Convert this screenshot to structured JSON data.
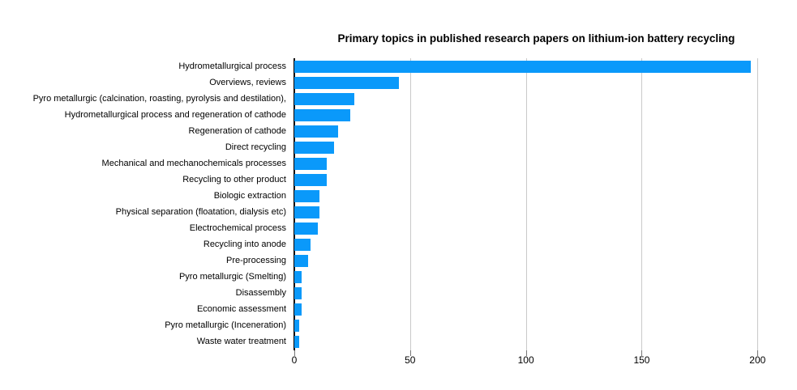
{
  "chart_data": {
    "type": "bar",
    "orientation": "horizontal",
    "title": "Primary topics in published research papers on lithium-ion battery recycling",
    "categories": [
      "Hydrometallurgical process",
      "Overviews, reviews",
      "Pyro metallurgic (calcination, roasting, pyrolysis and destilation),",
      "Hydrometallurgical process and regeneration of cathode",
      "Regeneration of cathode",
      "Direct recycling",
      "Mechanical and mechanochemicals processes",
      "Recycling to other product",
      "Biologic extraction",
      "Physical separation (floatation, dialysis etc)",
      "Electrochemical process",
      "Recycling into anode",
      "Pre-processing",
      "Pyro metallurgic (Smelting)",
      "Disassembly",
      "Economic assessment",
      "Pyro metallurgic (Inceneration)",
      "Waste water treatment"
    ],
    "values": [
      197,
      45,
      26,
      24,
      19,
      17,
      14,
      14,
      11,
      11,
      10,
      7,
      6,
      3,
      3,
      3,
      2,
      2
    ],
    "xlabel": "",
    "ylabel": "",
    "xlim": [
      0,
      209
    ],
    "x_ticks": [
      0,
      50,
      100,
      150,
      200
    ],
    "grid": "vertical",
    "legend": "none",
    "bar_color": "#0a99fa",
    "gridline_color": "#c9c9c9",
    "axis_color": "#000000"
  }
}
